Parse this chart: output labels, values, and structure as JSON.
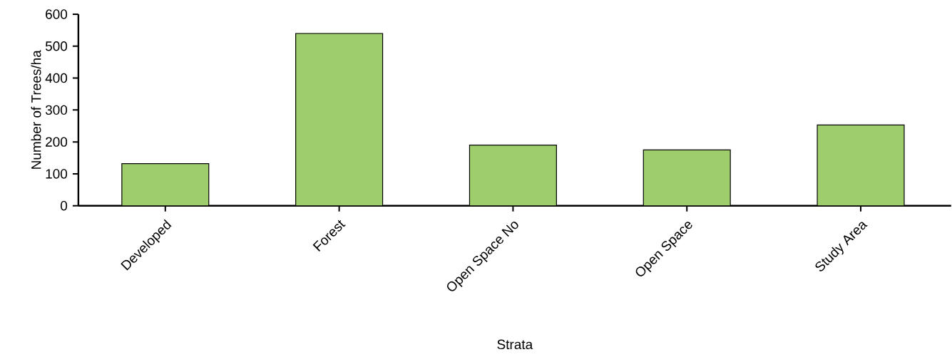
{
  "chart_data": {
    "type": "bar",
    "xlabel": "Strata",
    "ylabel": "Number of Trees/ha",
    "categories": [
      "Developed",
      "Forest",
      "Open Space No",
      "Open Space",
      "Study Area"
    ],
    "values": [
      132,
      540,
      190,
      175,
      253
    ],
    "color": "#9ecd6b",
    "ylim": [
      0,
      600
    ],
    "yticks": [
      0,
      100,
      200,
      300,
      400,
      500,
      600
    ]
  }
}
